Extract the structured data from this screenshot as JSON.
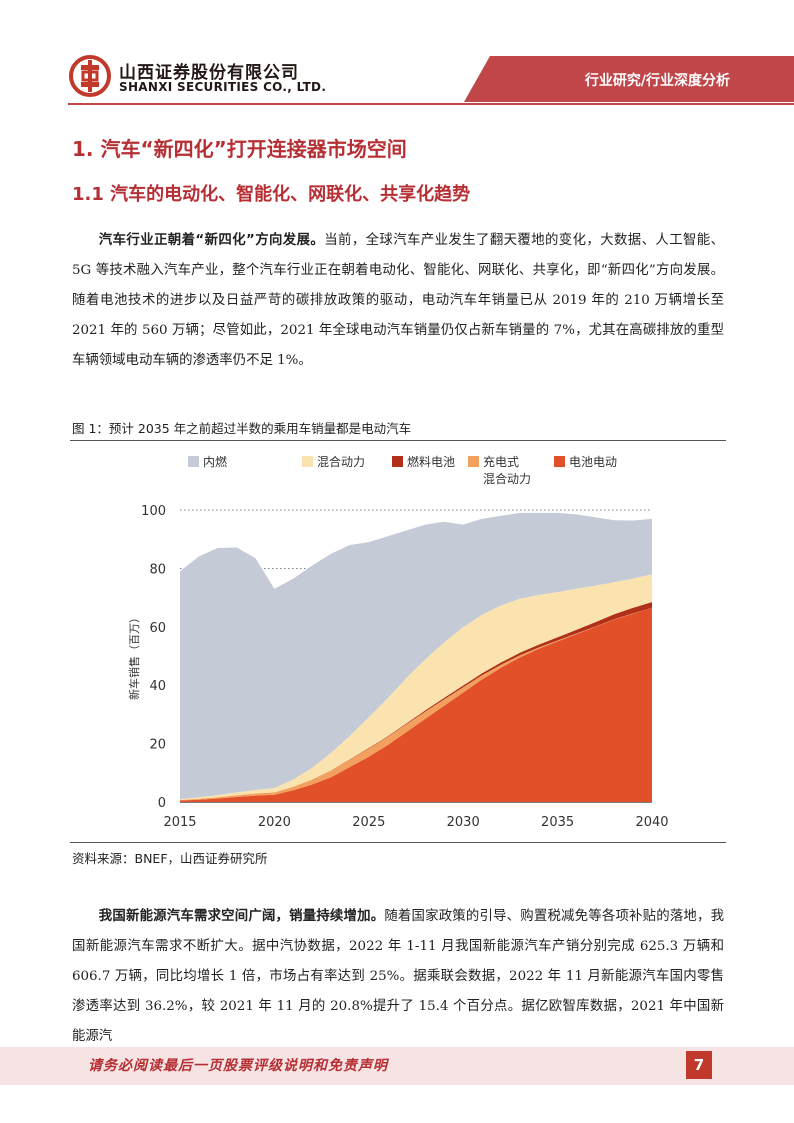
{
  "header": {
    "brand_cn": "山西证券股份有限公司",
    "brand_en": "SHANXI SECURITIES CO., LTD.",
    "section_tag": "行业研究/行业深度分析"
  },
  "headings": {
    "h1": "1. 汽车“新四化”打开连接器市场空间",
    "h2": "1.1  汽车的电动化、智能化、网联化、共享化趋势"
  },
  "paragraph1": {
    "lead": "汽车行业正朝着“新四化”方向发展。",
    "body": "当前，全球汽车产业发生了翻天覆地的变化，大数据、人工智能、5G 等技术融入汽车产业，整个汽车行业正在朝着电动化、智能化、网联化、共享化，即“新四化”方向发展。随着电池技术的进步以及日益严苛的碳排放政策的驱动，电动汽车年销量已从 2019 年的 210 万辆增长至 2021 年的 560 万辆；尽管如此，2021 年全球电动汽车销量仍仅占新车销量的 7%，尤其在高碳排放的重型车辆领域电动车辆的渗透率仍不足 1%。"
  },
  "figure": {
    "caption": "图 1：预计 2035 年之前超过半数的乘用车销量都是电动汽车",
    "source": "资料来源：BNEF，山西证券研究所"
  },
  "chart_data": {
    "type": "area",
    "stacked": true,
    "ylabel": "新车销售（百万）",
    "ylim": [
      0,
      100
    ],
    "yticks": [
      0,
      20,
      40,
      60,
      80,
      100
    ],
    "xticks": [
      2015,
      2020,
      2025,
      2030,
      2035,
      2040
    ],
    "x": [
      2015,
      2016,
      2017,
      2018,
      2019,
      2020,
      2021,
      2022,
      2023,
      2024,
      2025,
      2026,
      2027,
      2028,
      2029,
      2030,
      2031,
      2032,
      2033,
      2034,
      2035,
      2036,
      2037,
      2038,
      2039,
      2040
    ],
    "legend_position": "top",
    "series": [
      {
        "name": "电池电动",
        "color": "#e2502a",
        "values": [
          0.5,
          0.8,
          1.2,
          1.7,
          2.2,
          2.5,
          4.0,
          6.0,
          8.5,
          12.0,
          15.5,
          19.5,
          24.0,
          28.5,
          33.0,
          37.5,
          42.0,
          46.0,
          49.5,
          52.5,
          55.0,
          57.5,
          60.0,
          62.5,
          64.5,
          66.5
        ]
      },
      {
        "name": "充电式混合动力",
        "color": "#f1a05d",
        "values": [
          0.2,
          0.3,
          0.4,
          0.6,
          0.7,
          0.8,
          1.2,
          1.7,
          2.2,
          2.6,
          2.8,
          2.8,
          2.7,
          2.5,
          2.2,
          1.8,
          1.4,
          1.0,
          0.7,
          0.4,
          0.3,
          0.2,
          0.1,
          0.1,
          0.1,
          0.0
        ]
      },
      {
        "name": "燃料电池",
        "color": "#b03018",
        "values": [
          0.0,
          0.0,
          0.0,
          0.0,
          0.0,
          0.0,
          0.0,
          0.0,
          0.1,
          0.1,
          0.2,
          0.2,
          0.3,
          0.4,
          0.5,
          0.6,
          0.7,
          0.8,
          0.9,
          1.0,
          1.1,
          1.3,
          1.5,
          1.7,
          1.9,
          2.0
        ]
      },
      {
        "name": "混合动力",
        "color": "#fbe3b0",
        "values": [
          0.3,
          0.5,
          0.8,
          1.0,
          1.2,
          1.5,
          2.5,
          4.0,
          6.0,
          8.0,
          10.5,
          13.0,
          15.5,
          17.5,
          19.0,
          20.0,
          20.0,
          19.5,
          18.5,
          17.0,
          15.5,
          14.0,
          12.5,
          11.0,
          10.0,
          9.5
        ]
      },
      {
        "name": "内燃",
        "color": "#c5cbd6",
        "values": [
          78.0,
          82.5,
          84.6,
          83.9,
          79.4,
          68.2,
          68.8,
          69.3,
          68.2,
          65.3,
          60.0,
          55.5,
          50.5,
          46.1,
          41.3,
          35.1,
          32.9,
          30.7,
          29.4,
          28.1,
          27.1,
          25.5,
          23.4,
          21.2,
          19.9,
          19.0
        ]
      }
    ]
  },
  "paragraph2": {
    "lead": "我国新能源汽车需求空间广阔，销量持续增加。",
    "body": "随着国家政策的引导、购置税减免等各项补贴的落地，我国新能源汽车需求不断扩大。据中汽协数据，2022 年 1-11 月我国新能源汽车产销分别完成 625.3 万辆和 606.7 万辆，同比均增长 1 倍，市场占有率达到 25%。据乘联会数据，2022 年 11 月新能源汽车国内零售渗透率达到 36.2%，较 2021 年 11 月的 20.8%提升了 15.4 个百分点。据亿欧智库数据，2021 年中国新能源汽"
  },
  "footer": {
    "disclaimer": "请务必阅读最后一页股票评级说明和免责声明",
    "page_number": "7"
  }
}
